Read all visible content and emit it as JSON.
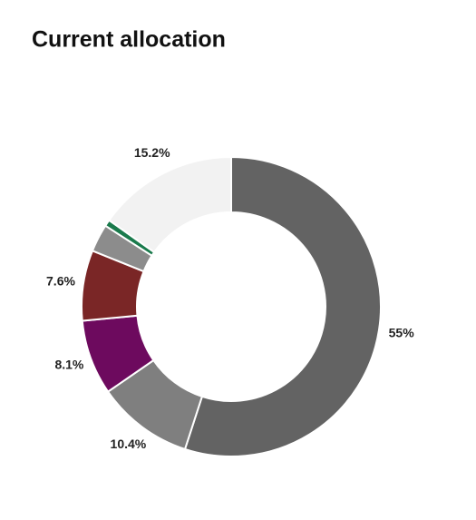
{
  "chart_data": {
    "type": "donut",
    "title": "Current allocation",
    "values": [
      55,
      10.4,
      8.1,
      7.6,
      3.0,
      0.7,
      15.2
    ],
    "value_labels": [
      "55%",
      "10.4%",
      "8.1%",
      "7.6%",
      null,
      null,
      "15.2%"
    ],
    "colors": [
      "#636363",
      "#7f7f7f",
      "#6d0a5e",
      "#7a2626",
      "#8c8c8c",
      "#1a7a4c",
      "#f2f2f2"
    ]
  }
}
